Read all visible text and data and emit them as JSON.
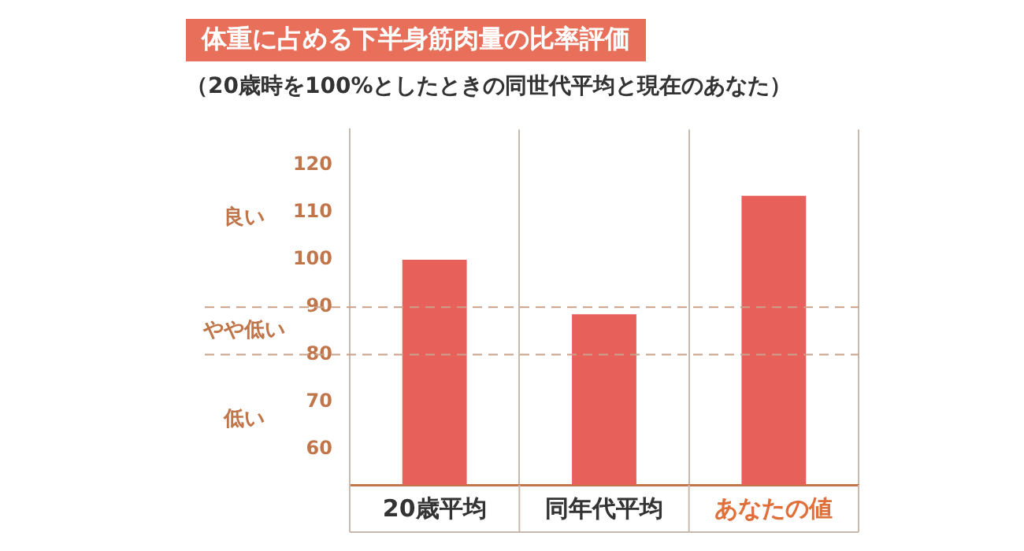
{
  "chart_data": {
    "type": "bar",
    "title": "体重に占める下半身筋肉量の比率評価",
    "subtitle": "（20歳時を100%としたときの同世代平均と現在のあなた）",
    "categories": [
      "20歳平均",
      "同年代平均",
      "あなたの値"
    ],
    "values": [
      100,
      88.5,
      113.5
    ],
    "color": "#e8605a",
    "ylim": [
      52.5,
      127.5
    ],
    "yticks": [
      60,
      70,
      80,
      90,
      100,
      110,
      120
    ],
    "grid": "x",
    "legend": false,
    "ref_lines": [
      {
        "axis": "y",
        "value": 90,
        "color": "#c9a089",
        "line_style": "dashed"
      },
      {
        "axis": "y",
        "value": 80,
        "color": "#c9a089",
        "line_style": "dashed"
      }
    ],
    "annotations": [
      "良い",
      "やや低い",
      "低い"
    ]
  }
}
